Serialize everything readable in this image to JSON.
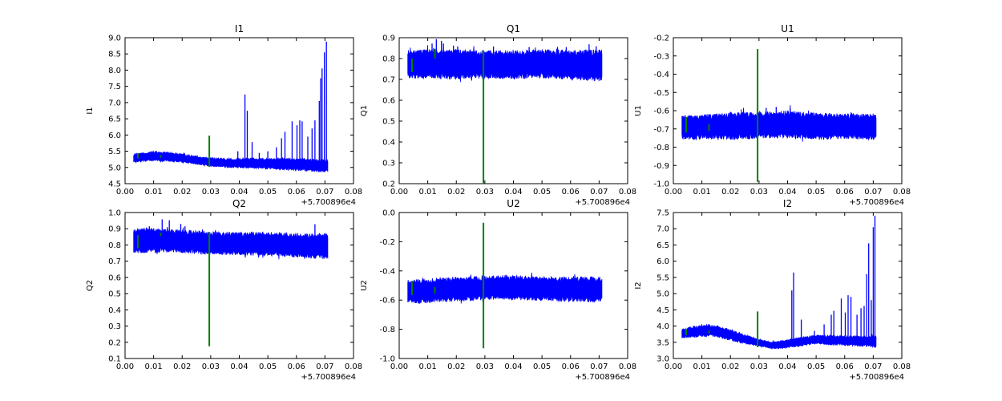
{
  "figure": {
    "background": "#ffffff",
    "series_color": "#0000ff",
    "event_color": "#008000",
    "axes_color": "#000000",
    "offset_label": "+5.700896e4",
    "xtick_labels": [
      "0.00",
      "0.01",
      "0.02",
      "0.03",
      "0.04",
      "0.05",
      "0.06",
      "0.07",
      "0.08"
    ]
  },
  "chart_data": [
    {
      "type": "line",
      "title": "I1",
      "ylabel": "I1",
      "xlim": [
        0.0,
        0.08
      ],
      "ylim": [
        4.5,
        9.0
      ],
      "x_range": [
        0.003,
        0.071
      ],
      "ytick_labels": [
        "4.5",
        "5.0",
        "5.5",
        "6.0",
        "6.5",
        "7.0",
        "7.5",
        "8.0",
        "8.5",
        "9.0"
      ],
      "band": [
        [
          0.003,
          5.15,
          5.42
        ],
        [
          0.006,
          5.18,
          5.45
        ],
        [
          0.01,
          5.2,
          5.5
        ],
        [
          0.014,
          5.18,
          5.48
        ],
        [
          0.018,
          5.15,
          5.45
        ],
        [
          0.022,
          5.12,
          5.4
        ],
        [
          0.026,
          5.08,
          5.35
        ],
        [
          0.03,
          5.03,
          5.3
        ],
        [
          0.035,
          5.0,
          5.28
        ],
        [
          0.04,
          4.98,
          5.28
        ],
        [
          0.045,
          4.97,
          5.3
        ],
        [
          0.05,
          4.95,
          5.28
        ],
        [
          0.055,
          4.92,
          5.3
        ],
        [
          0.06,
          4.9,
          5.28
        ],
        [
          0.065,
          4.88,
          5.28
        ],
        [
          0.068,
          4.86,
          5.25
        ],
        [
          0.071,
          4.85,
          5.25
        ]
      ],
      "spikes": [
        [
          0.0395,
          5.5
        ],
        [
          0.042,
          7.25
        ],
        [
          0.0428,
          6.75
        ],
        [
          0.0445,
          5.78
        ],
        [
          0.047,
          5.45
        ],
        [
          0.05,
          5.5
        ],
        [
          0.053,
          5.62
        ],
        [
          0.0548,
          5.9
        ],
        [
          0.056,
          6.1
        ],
        [
          0.0585,
          6.42
        ],
        [
          0.0602,
          6.3
        ],
        [
          0.0612,
          6.45
        ],
        [
          0.062,
          6.42
        ],
        [
          0.064,
          5.95
        ],
        [
          0.0655,
          6.2
        ],
        [
          0.0665,
          6.45
        ],
        [
          0.068,
          7.05
        ],
        [
          0.0685,
          7.75
        ],
        [
          0.069,
          8.05
        ],
        [
          0.0698,
          8.55
        ],
        [
          0.0705,
          8.88
        ]
      ],
      "green_line": [
        0.0295,
        5.02,
        5.98
      ],
      "green_marks": [
        [
          0.0045,
          5.28,
          5.43
        ],
        [
          0.0125,
          5.3,
          5.38
        ]
      ]
    },
    {
      "type": "line",
      "title": "Q1",
      "ylabel": "Q1",
      "xlim": [
        0.0,
        0.08
      ],
      "ylim": [
        0.2,
        0.9
      ],
      "x_range": [
        0.003,
        0.071
      ],
      "ytick_labels": [
        "0.2",
        "0.3",
        "0.4",
        "0.5",
        "0.6",
        "0.7",
        "0.8",
        "0.9"
      ],
      "band": [
        [
          0.003,
          0.705,
          0.84
        ],
        [
          0.01,
          0.705,
          0.845
        ],
        [
          0.02,
          0.7,
          0.845
        ],
        [
          0.03,
          0.705,
          0.84
        ],
        [
          0.04,
          0.7,
          0.84
        ],
        [
          0.05,
          0.705,
          0.845
        ],
        [
          0.06,
          0.7,
          0.84
        ],
        [
          0.071,
          0.69,
          0.845
        ]
      ],
      "spikes": [
        [
          0.0115,
          0.872
        ],
        [
          0.013,
          0.893
        ],
        [
          0.0148,
          0.885
        ],
        [
          0.0155,
          0.872
        ],
        [
          0.019,
          0.862
        ],
        [
          0.0205,
          0.858
        ],
        [
          0.033,
          0.858
        ],
        [
          0.0455,
          0.855
        ],
        [
          0.0585,
          0.855
        ],
        [
          0.0665,
          0.868
        ],
        [
          0.069,
          0.858
        ]
      ],
      "green_line": [
        0.0295,
        0.203,
        0.838
      ],
      "green_marks": [
        [
          0.0045,
          0.735,
          0.8
        ],
        [
          0.0125,
          0.8,
          0.845
        ]
      ]
    },
    {
      "type": "line",
      "title": "U1",
      "ylabel": "U1",
      "xlim": [
        0.0,
        0.08
      ],
      "ylim": [
        -1.0,
        -0.2
      ],
      "x_range": [
        0.003,
        0.071
      ],
      "ytick_labels": [
        "-1.0",
        "-0.9",
        "-0.8",
        "-0.7",
        "-0.6",
        "-0.5",
        "-0.4",
        "-0.3",
        "-0.2"
      ],
      "band": [
        [
          0.003,
          -0.755,
          -0.625
        ],
        [
          0.008,
          -0.76,
          -0.625
        ],
        [
          0.015,
          -0.755,
          -0.615
        ],
        [
          0.02,
          -0.76,
          -0.61
        ],
        [
          0.03,
          -0.755,
          -0.605
        ],
        [
          0.04,
          -0.75,
          -0.6
        ],
        [
          0.05,
          -0.76,
          -0.61
        ],
        [
          0.06,
          -0.755,
          -0.615
        ],
        [
          0.071,
          -0.76,
          -0.615
        ]
      ],
      "spikes": [
        [
          0.0325,
          -0.585
        ],
        [
          0.036,
          -0.58
        ]
      ],
      "green_line": [
        0.0295,
        -0.99,
        -0.262
      ],
      "green_marks": [
        [
          0.0045,
          -0.72,
          -0.635
        ],
        [
          0.0125,
          -0.71,
          -0.675
        ]
      ]
    },
    {
      "type": "line",
      "title": "Q2",
      "ylabel": "Q2",
      "xlim": [
        0.0,
        0.08
      ],
      "ylim": [
        0.1,
        1.0
      ],
      "x_range": [
        0.003,
        0.071
      ],
      "ytick_labels": [
        "0.1",
        "0.2",
        "0.3",
        "0.4",
        "0.5",
        "0.6",
        "0.7",
        "0.8",
        "0.9",
        "1.0"
      ],
      "band": [
        [
          0.003,
          0.75,
          0.9
        ],
        [
          0.008,
          0.75,
          0.905
        ],
        [
          0.013,
          0.755,
          0.9
        ],
        [
          0.02,
          0.75,
          0.895
        ],
        [
          0.03,
          0.74,
          0.885
        ],
        [
          0.04,
          0.735,
          0.88
        ],
        [
          0.05,
          0.73,
          0.88
        ],
        [
          0.06,
          0.725,
          0.875
        ],
        [
          0.071,
          0.71,
          0.87
        ]
      ],
      "spikes": [
        [
          0.0085,
          0.915
        ],
        [
          0.013,
          0.958
        ],
        [
          0.0155,
          0.952
        ],
        [
          0.0195,
          0.93
        ],
        [
          0.021,
          0.915
        ],
        [
          0.0665,
          0.928
        ]
      ],
      "green_line": [
        0.0295,
        0.175,
        0.88
      ],
      "green_marks": [
        [
          0.0045,
          0.78,
          0.86
        ],
        [
          0.0125,
          0.855,
          0.875
        ]
      ]
    },
    {
      "type": "line",
      "title": "U2",
      "ylabel": "U2",
      "xlim": [
        0.0,
        0.08
      ],
      "ylim": [
        -1.0,
        0.0
      ],
      "x_range": [
        0.003,
        0.071
      ],
      "ytick_labels": [
        "-1.0",
        "-0.8",
        "-0.6",
        "-0.4",
        "-0.2",
        "0.0"
      ],
      "band": [
        [
          0.003,
          -0.615,
          -0.46
        ],
        [
          0.007,
          -0.625,
          -0.455
        ],
        [
          0.012,
          -0.615,
          -0.45
        ],
        [
          0.02,
          -0.61,
          -0.44
        ],
        [
          0.03,
          -0.6,
          -0.435
        ],
        [
          0.035,
          -0.595,
          -0.425
        ],
        [
          0.04,
          -0.6,
          -0.43
        ],
        [
          0.05,
          -0.605,
          -0.44
        ],
        [
          0.06,
          -0.61,
          -0.44
        ],
        [
          0.071,
          -0.615,
          -0.44
        ]
      ],
      "spikes": [],
      "green_line": [
        0.0295,
        -0.93,
        -0.07
      ],
      "green_marks": [
        [
          0.0045,
          -0.565,
          -0.47
        ],
        [
          0.0125,
          -0.555,
          -0.51
        ]
      ]
    },
    {
      "type": "line",
      "title": "I2",
      "ylabel": "I2",
      "xlim": [
        0.0,
        0.08
      ],
      "ylim": [
        3.0,
        7.5
      ],
      "x_range": [
        0.003,
        0.071
      ],
      "ytick_labels": [
        "3.0",
        "3.5",
        "4.0",
        "4.5",
        "5.0",
        "5.5",
        "6.0",
        "6.5",
        "7.0",
        "7.5"
      ],
      "band": [
        [
          0.003,
          3.62,
          3.92
        ],
        [
          0.007,
          3.65,
          4.0
        ],
        [
          0.012,
          3.68,
          4.05
        ],
        [
          0.016,
          3.65,
          4.0
        ],
        [
          0.02,
          3.55,
          3.9
        ],
        [
          0.025,
          3.45,
          3.75
        ],
        [
          0.03,
          3.38,
          3.6
        ],
        [
          0.034,
          3.3,
          3.52
        ],
        [
          0.038,
          3.3,
          3.55
        ],
        [
          0.042,
          3.35,
          3.62
        ],
        [
          0.046,
          3.4,
          3.68
        ],
        [
          0.05,
          3.45,
          3.72
        ],
        [
          0.055,
          3.42,
          3.72
        ],
        [
          0.06,
          3.4,
          3.7
        ],
        [
          0.065,
          3.38,
          3.7
        ],
        [
          0.071,
          3.33,
          3.7
        ]
      ],
      "spikes": [
        [
          0.0415,
          5.1
        ],
        [
          0.0421,
          5.65
        ],
        [
          0.0448,
          4.2
        ],
        [
          0.0494,
          3.85
        ],
        [
          0.0528,
          4.05
        ],
        [
          0.0553,
          4.35
        ],
        [
          0.0562,
          4.47
        ],
        [
          0.0588,
          4.85
        ],
        [
          0.0602,
          4.42
        ],
        [
          0.0612,
          4.95
        ],
        [
          0.0622,
          4.9
        ],
        [
          0.0643,
          4.35
        ],
        [
          0.0657,
          4.55
        ],
        [
          0.0668,
          4.62
        ],
        [
          0.0677,
          5.6
        ],
        [
          0.0684,
          6.55
        ],
        [
          0.0693,
          4.8
        ],
        [
          0.07,
          7.05
        ],
        [
          0.0706,
          7.4
        ]
      ],
      "green_line": [
        0.0295,
        3.35,
        4.45
      ],
      "green_marks": [
        [
          0.0045,
          3.72,
          3.9
        ],
        [
          0.0125,
          3.78,
          3.86
        ]
      ]
    }
  ]
}
